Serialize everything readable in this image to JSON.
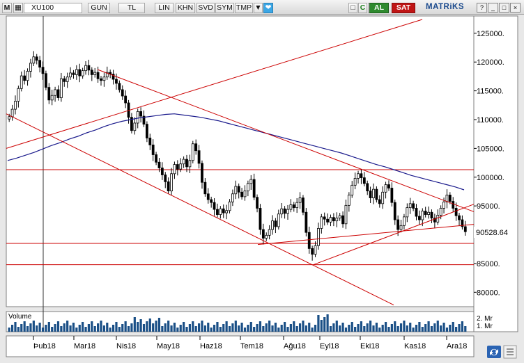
{
  "toolbar": {
    "m_label": "M",
    "symbol": "XU100",
    "buttons": [
      "GUN",
      "TL",
      "LIN",
      "KHN",
      "SVD",
      "SYM",
      "TMP"
    ],
    "al_label": "AL",
    "sat_label": "SAT",
    "brand": "MATRiKS",
    "refresh_glyph": "C"
  },
  "chart_data": {
    "type": "candlestick",
    "title": "XU100",
    "x_tick_labels": [
      "Þub18",
      "Mar18",
      "Nis18",
      "May18",
      "Haz18",
      "Tem18",
      "Ağu18",
      "Eyl18",
      "Eki18",
      "Kas18",
      "Ara18"
    ],
    "y_tick_labels": [
      "125000.",
      "120000.",
      "115000.",
      "110000.",
      "105000.",
      "100000.",
      "95000.",
      "90000.",
      "85000.",
      "80000."
    ],
    "y_ticks": [
      125000,
      120000,
      115000,
      110000,
      105000,
      100000,
      95000,
      90000,
      85000,
      80000
    ],
    "ylim": [
      77500,
      128000
    ],
    "last_price": 90528.64,
    "last_price_label": "90528.64",
    "close_series": [
      110500,
      111800,
      113200,
      115400,
      117600,
      116800,
      118400,
      119800,
      120900,
      120300,
      119100,
      118000,
      115600,
      113400,
      114200,
      115200,
      113800,
      117100,
      116600,
      117400,
      118100,
      117800,
      118700,
      117600,
      118500,
      119400,
      118600,
      117800,
      118200,
      117100,
      116800,
      117400,
      118200,
      117900,
      117000,
      116300,
      115200,
      114100,
      112900,
      110400,
      108100,
      109400,
      111400,
      110600,
      109200,
      106800,
      105600,
      103900,
      102600,
      101600,
      100400,
      99200,
      97600,
      100600,
      102200,
      101400,
      102300,
      103100,
      101800,
      102900,
      105800,
      104600,
      102400,
      99100,
      97100,
      96100,
      95600,
      94400,
      93500,
      94500,
      93800,
      94200,
      95700,
      97100,
      98400,
      97400,
      96600,
      97600,
      98900,
      99600,
      96500,
      94600,
      90900,
      89400,
      89900,
      90900,
      92400,
      91400,
      93600,
      94500,
      93700,
      94400,
      95200,
      94700,
      95600,
      96400,
      93900,
      90400,
      87600,
      86600,
      88100,
      91100,
      93100,
      92700,
      92200,
      93000,
      92400,
      92900,
      93300,
      91900,
      95100,
      96900,
      98600,
      99800,
      100600,
      99900,
      98900,
      97600,
      96400,
      97900,
      96100,
      95400,
      97400,
      98700,
      98100,
      95600,
      92600,
      90900,
      91600,
      93100,
      94700,
      95400,
      94600,
      93200,
      92600,
      94100,
      93500,
      93900,
      92900,
      92200,
      93400,
      94600,
      95700,
      96900,
      95800,
      94600,
      93300,
      92600,
      91400,
      90530
    ],
    "moving_average": [
      102900,
      103300,
      103800,
      104300,
      104900,
      105500,
      106000,
      106600,
      107100,
      107700,
      108200,
      108800,
      109300,
      109700,
      110000,
      110300,
      110500,
      110700,
      110900,
      111000,
      110800,
      110600,
      110400,
      110100,
      109800,
      109400,
      109000,
      108600,
      108200,
      107800,
      107400,
      107000,
      106600,
      106200,
      105800,
      105400,
      105000,
      104600,
      104200,
      103700,
      103200,
      102700,
      102200,
      101800,
      101300,
      100800,
      100300,
      99900,
      99500,
      99100,
      98700,
      98300,
      97800
    ],
    "volume_axis_labels": [
      "2. Mr",
      "1. Mr"
    ],
    "volume_label": "Volume",
    "horizontal_levels": [
      101300,
      88500,
      84800
    ]
  },
  "colors": {
    "background": "#ffffff",
    "candle": "#000000",
    "trendline": "#cc0000",
    "moving_average": "#1a1a8c",
    "volume": "#1a4f86",
    "al": "#2f8a2f",
    "sat": "#c01515",
    "brand": "#1c4b8e"
  }
}
